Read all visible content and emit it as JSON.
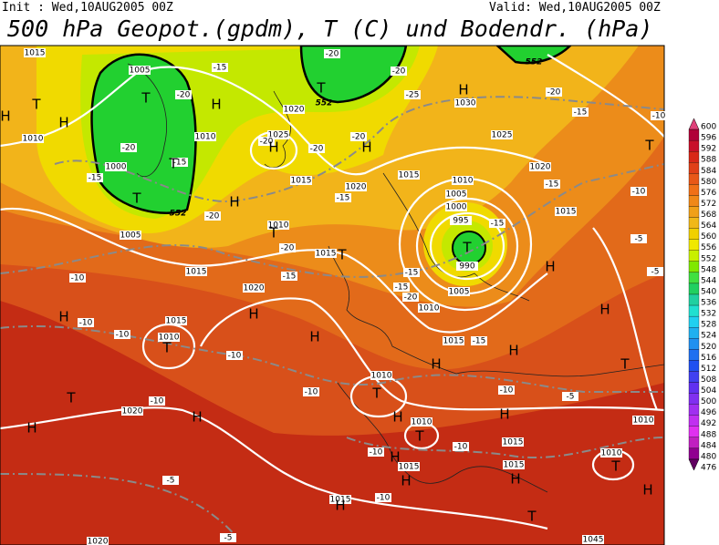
{
  "header": {
    "init": "Init : Wed,10AUG2005 00Z",
    "valid": "Valid: Wed,10AUG2005 00Z",
    "title": "500 hPa Geopot.(gpdm), T (C) und Bodendr. (hPa)"
  },
  "map": {
    "pressure_centers": [
      "H",
      "T",
      "H",
      "T",
      "T",
      "T",
      "H",
      "H",
      "H",
      "T",
      "T",
      "H",
      "H",
      "T",
      "T",
      "H",
      "T",
      "H",
      "H",
      "H",
      "T",
      "H",
      "T",
      "H",
      "H",
      "H",
      "H",
      "T",
      "T",
      "H",
      "T",
      "H",
      "H",
      "H",
      "H",
      "T",
      "H",
      "H",
      "T"
    ],
    "isobar_labels": [
      "1015",
      "1005",
      "1010",
      "1000",
      "1005",
      "1010",
      "1020",
      "1025",
      "1015",
      "1020",
      "1010",
      "1015",
      "1015",
      "1020",
      "1015",
      "1010",
      "1030",
      "1025",
      "1020",
      "1015",
      "1015",
      "1010",
      "1005",
      "1000",
      "995",
      "990",
      "1005",
      "1010",
      "1015",
      "1010",
      "1020",
      "1010",
      "1015",
      "1015",
      "1010",
      "1010",
      "1015",
      "1015",
      "1020",
      "1045"
    ],
    "temperature_labels": [
      "-15",
      "-20",
      "-20",
      "-25",
      "-20",
      "-20",
      "-15",
      "-20",
      "-15",
      "-20",
      "-20",
      "-20",
      "-15",
      "-20",
      "-15",
      "-10",
      "-10",
      "-10",
      "-10",
      "-10",
      "-10",
      "-5",
      "-5",
      "-15",
      "-20",
      "-15",
      "-15",
      "-15",
      "-20",
      "-15",
      "-10",
      "-10",
      "-15",
      "-5",
      "-5",
      "-10",
      "-5",
      "-10",
      "-10",
      "-10"
    ],
    "height_labels": [
      "552",
      "552",
      "552"
    ]
  },
  "colorbar": {
    "levels": [
      600,
      596,
      592,
      588,
      584,
      580,
      576,
      572,
      568,
      564,
      560,
      556,
      552,
      548,
      544,
      540,
      536,
      532,
      528,
      524,
      520,
      516,
      512,
      508,
      504,
      500,
      496,
      492,
      488,
      484,
      480,
      476
    ],
    "colors": [
      "#e0407a",
      "#b00038",
      "#c8102a",
      "#d82818",
      "#e04018",
      "#e85818",
      "#f07018",
      "#f08818",
      "#f0a018",
      "#f0b818",
      "#f0d000",
      "#f0e800",
      "#c8f000",
      "#80e800",
      "#40e040",
      "#20d060",
      "#20d0a0",
      "#20e0d0",
      "#20d0f0",
      "#20b0f0",
      "#2090f0",
      "#2070f0",
      "#2050f0",
      "#4040f0",
      "#6030f0",
      "#8030f0",
      "#a030f0",
      "#c030f0",
      "#e030f0",
      "#c020c0",
      "#900090",
      "#600060"
    ]
  }
}
